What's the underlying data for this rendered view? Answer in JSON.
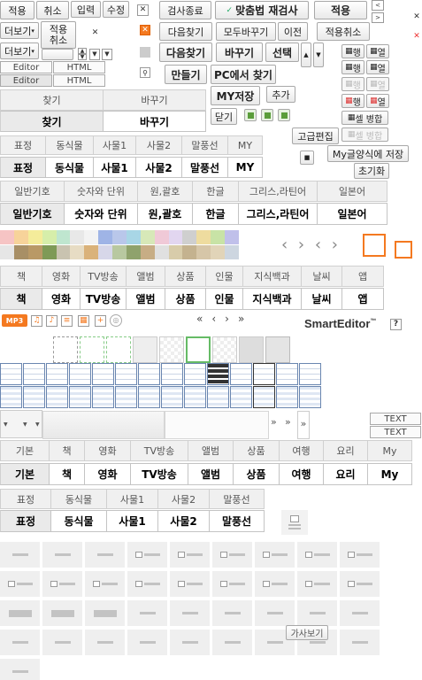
{
  "toolbar1": {
    "apply": "적용",
    "cancel": "취소",
    "input": "입력",
    "edit": "수정",
    "close": "✕"
  },
  "more": {
    "label1": "더보기",
    "label2": "더보기",
    "apply_cancel": "적용\n취소"
  },
  "editor_tabs": {
    "editor1": "Editor",
    "html1": "HTML",
    "editor2": "Editor",
    "html2": "HTML"
  },
  "findbar": {
    "end_search": "검사종료",
    "spell_recheck": "맞춤법 재검사",
    "apply": "적용",
    "find_next": "다음찾기",
    "replace_all": "모두바꾸기",
    "prev": "이전",
    "undo_apply": "적용취소",
    "find_next_b": "다음찾기",
    "replace_b": "바꾸기",
    "select_b": "선택",
    "make": "만들기",
    "find_on_pc": "PC에서 찾기",
    "my_save": "MY저장",
    "add": "추가",
    "close": "닫기"
  },
  "table_buttons": {
    "row1": "행",
    "col1": "열",
    "row2": "행",
    "col2": "열",
    "row3": "행",
    "col3": "열",
    "merge1": "셀 병합",
    "merge2": "셀 병합"
  },
  "find_tabs": {
    "find": "찾기",
    "replace": "바꾸기"
  },
  "find_tabs_active": {
    "find": "찾기",
    "replace": "바꾸기"
  },
  "adv_edit": "고급편집",
  "my_style": "My글양식에 저장",
  "reset": "초기화",
  "sticker_tabs": {
    "items": [
      "표정",
      "동식물",
      "사물1",
      "사물2",
      "말풍선",
      "MY"
    ]
  },
  "sticker_tabs_active": {
    "items": [
      "표정",
      "동식물",
      "사물1",
      "사물2",
      "말풍선",
      "MY"
    ]
  },
  "symbol_tabs": {
    "items": [
      "일반기호",
      "숫자와 단위",
      "원,괄호",
      "한글",
      "그리스,라틴어",
      "일본어"
    ]
  },
  "symbol_tabs_active": {
    "items": [
      "일반기호",
      "숫자와 단위",
      "원,괄호",
      "한글",
      "그리스,라틴어",
      "일본어"
    ]
  },
  "content_tabs": {
    "items": [
      "책",
      "영화",
      "TV방송",
      "앨범",
      "상품",
      "인물",
      "지식백과",
      "날씨",
      "앱"
    ]
  },
  "content_tabs_active": {
    "items": [
      "책",
      "영화",
      "TV방송",
      "앨범",
      "상품",
      "인물",
      "지식백과",
      "날씨",
      "앱"
    ]
  },
  "smarteditor": {
    "logo": "SmartEditor",
    "tm": "™",
    "help": "?",
    "mp3": "MP3"
  },
  "paging": {
    "first": "«",
    "prev": "‹",
    "next": "›",
    "last": "»"
  },
  "text_labels": {
    "text1": "TEXT",
    "text2": "TEXT"
  },
  "category_tabs": {
    "items": [
      "기본",
      "책",
      "영화",
      "TV방송",
      "앨범",
      "상품",
      "여행",
      "요리",
      "My"
    ]
  },
  "category_tabs_active": {
    "items": [
      "기본",
      "책",
      "영화",
      "TV방송",
      "앨범",
      "상품",
      "여행",
      "요리",
      "My"
    ]
  },
  "sticker_tabs2": {
    "items": [
      "표정",
      "동식물",
      "사물1",
      "사물2",
      "말풍선"
    ]
  },
  "sticker_tabs2_active": {
    "items": [
      "표정",
      "동식물",
      "사물1",
      "사물2",
      "말풍선"
    ]
  },
  "preview": "가사보기",
  "colors": {
    "accent": "#f47920",
    "border": "#a8a8a8",
    "tab_bg": "#f0f0f0",
    "table_blue": "#6a86b0"
  }
}
